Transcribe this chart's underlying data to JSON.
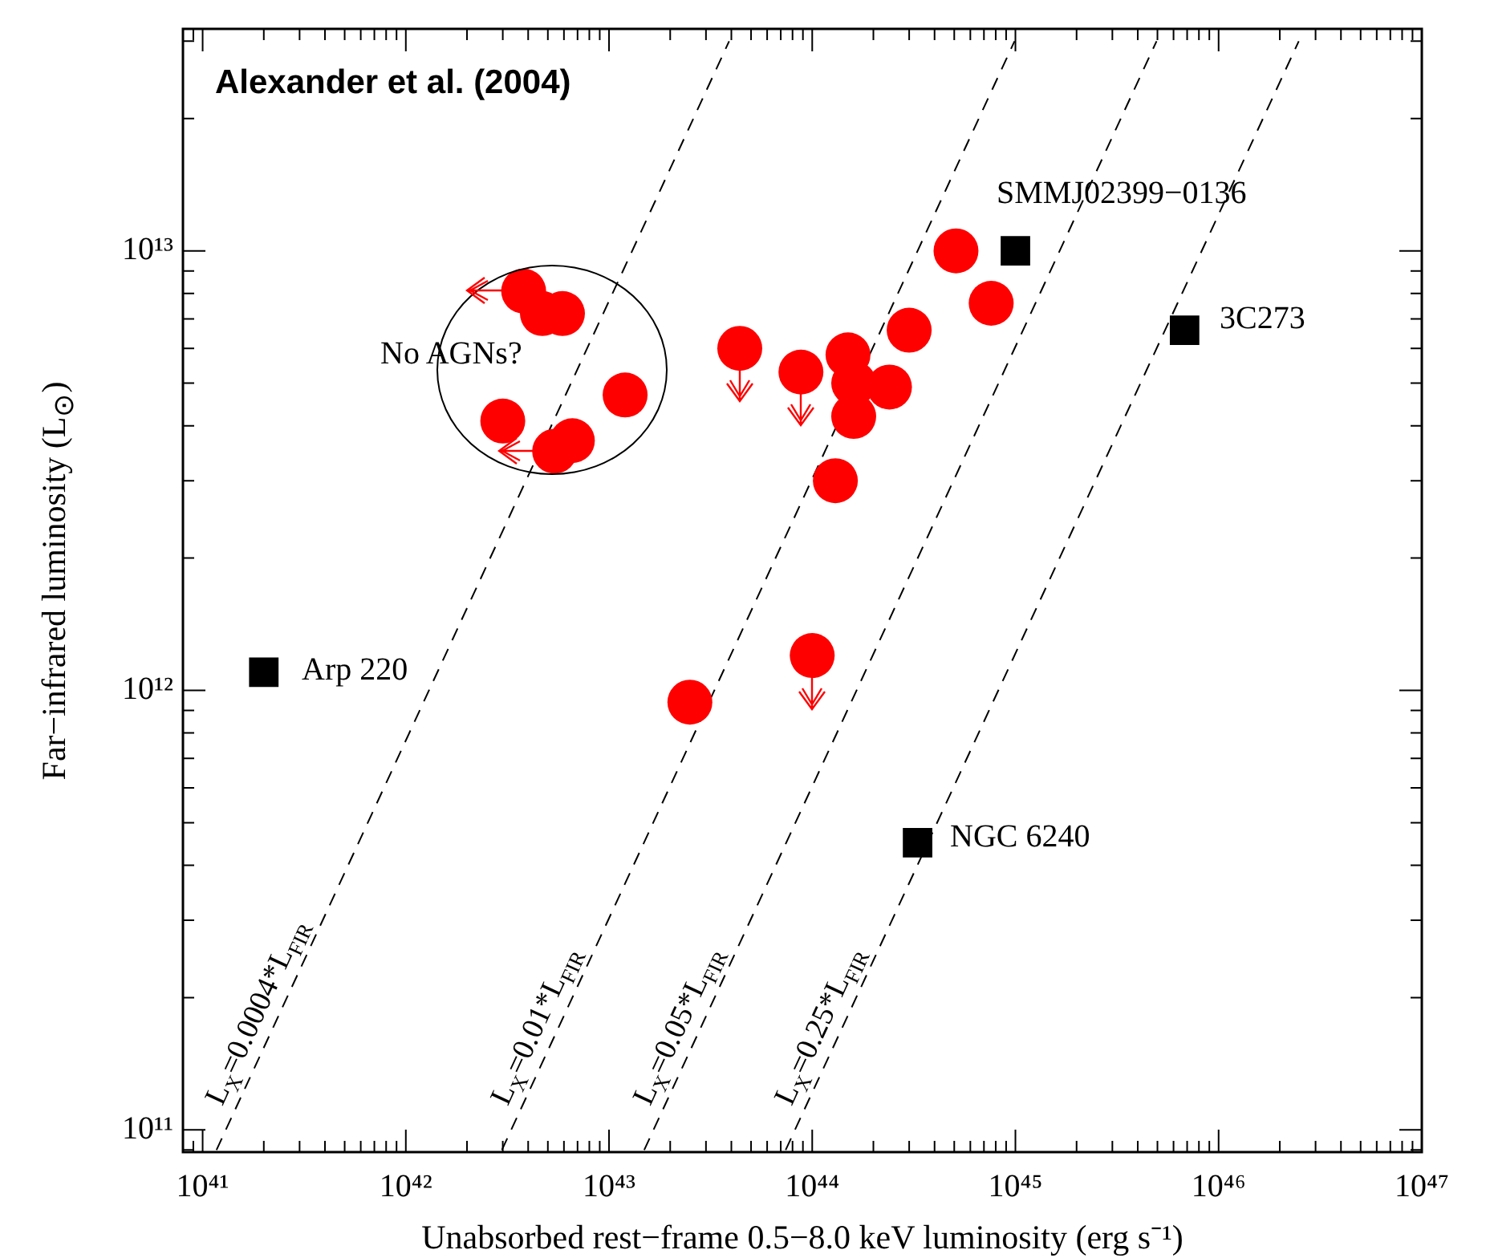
{
  "chart_data": {
    "type": "scatter",
    "title": "Alexander et al. (2004)",
    "xlabel": "Unabsorbed rest−frame 0.5−8.0 keV luminosity (erg s⁻¹)",
    "ylabel": "Far−infrared luminosity (L$_{⊙}$)",
    "log": "xy",
    "grid": false,
    "legend": false,
    "xlim": [
      8e+40,
      1e+47
    ],
    "ylim": [
      89000000000.0,
      32000000000000.0
    ],
    "xticks": [
      {
        "value": 9e+40,
        "label": null
      },
      {
        "value": 1e+41,
        "label": "10⁴¹"
      },
      {
        "value": 2e+41,
        "label": null
      },
      {
        "value": 3e+41,
        "label": null
      },
      {
        "value": 4e+41,
        "label": null
      },
      {
        "value": 5e+41,
        "label": null
      },
      {
        "value": 6e+41,
        "label": null
      },
      {
        "value": 7e+41,
        "label": null
      },
      {
        "value": 8e+41,
        "label": null
      },
      {
        "value": 9e+41,
        "label": null
      },
      {
        "value": 1e+42,
        "label": "10⁴²"
      },
      {
        "value": 2e+42,
        "label": null
      },
      {
        "value": 3e+42,
        "label": null
      },
      {
        "value": 4e+42,
        "label": null
      },
      {
        "value": 5e+42,
        "label": null
      },
      {
        "value": 6e+42,
        "label": null
      },
      {
        "value": 7e+42,
        "label": null
      },
      {
        "value": 8e+42,
        "label": null
      },
      {
        "value": 9e+42,
        "label": null
      },
      {
        "value": 1e+43,
        "label": "10⁴³"
      },
      {
        "value": 2e+43,
        "label": null
      },
      {
        "value": 3e+43,
        "label": null
      },
      {
        "value": 4e+43,
        "label": null
      },
      {
        "value": 5e+43,
        "label": null
      },
      {
        "value": 6e+43,
        "label": null
      },
      {
        "value": 7e+43,
        "label": null
      },
      {
        "value": 8e+43,
        "label": null
      },
      {
        "value": 9e+43,
        "label": null
      },
      {
        "value": 1e+44,
        "label": "10⁴⁴"
      },
      {
        "value": 2e+44,
        "label": null
      },
      {
        "value": 3e+44,
        "label": null
      },
      {
        "value": 4e+44,
        "label": null
      },
      {
        "value": 5e+44,
        "label": null
      },
      {
        "value": 6e+44,
        "label": null
      },
      {
        "value": 7e+44,
        "label": null
      },
      {
        "value": 8e+44,
        "label": null
      },
      {
        "value": 9e+44,
        "label": null
      },
      {
        "value": 1e+45,
        "label": "10⁴⁵"
      },
      {
        "value": 2e+45,
        "label": null
      },
      {
        "value": 3e+45,
        "label": null
      },
      {
        "value": 4e+45,
        "label": null
      },
      {
        "value": 5e+45,
        "label": null
      },
      {
        "value": 6e+45,
        "label": null
      },
      {
        "value": 7e+45,
        "label": null
      },
      {
        "value": 8e+45,
        "label": null
      },
      {
        "value": 9e+45,
        "label": null
      },
      {
        "value": 1e+46,
        "label": "10⁴⁶"
      },
      {
        "value": 2e+46,
        "label": null
      },
      {
        "value": 3e+46,
        "label": null
      },
      {
        "value": 4e+46,
        "label": null
      },
      {
        "value": 5e+46,
        "label": null
      },
      {
        "value": 6e+46,
        "label": null
      },
      {
        "value": 7e+46,
        "label": null
      },
      {
        "value": 8e+46,
        "label": null
      },
      {
        "value": 9e+46,
        "label": null
      },
      {
        "value": 1e+47,
        "label": "10⁴⁷"
      }
    ],
    "yticks": [
      {
        "value": 90000000000.0,
        "label": null
      },
      {
        "value": 100000000000.0,
        "label": "10¹¹"
      },
      {
        "value": 200000000000.0,
        "label": null
      },
      {
        "value": 300000000000.0,
        "label": null
      },
      {
        "value": 400000000000.0,
        "label": null
      },
      {
        "value": 500000000000.0,
        "label": null
      },
      {
        "value": 600000000000.0,
        "label": null
      },
      {
        "value": 700000000000.0,
        "label": null
      },
      {
        "value": 800000000000.0,
        "label": null
      },
      {
        "value": 900000000000.0,
        "label": null
      },
      {
        "value": 1000000000000.0,
        "label": "10¹²"
      },
      {
        "value": 2000000000000.0,
        "label": null
      },
      {
        "value": 3000000000000.0,
        "label": null
      },
      {
        "value": 4000000000000.0,
        "label": null
      },
      {
        "value": 5000000000000.0,
        "label": null
      },
      {
        "value": 6000000000000.0,
        "label": null
      },
      {
        "value": 7000000000000.0,
        "label": null
      },
      {
        "value": 8000000000000.0,
        "label": null
      },
      {
        "value": 9000000000000.0,
        "label": null
      },
      {
        "value": 10000000000000.0,
        "label": "10¹³"
      },
      {
        "value": 20000000000000.0,
        "label": null
      },
      {
        "value": 30000000000000.0,
        "label": null
      }
    ],
    "series": [
      {
        "type": "scatter",
        "color": "#ff0000",
        "marker": "circle",
        "x": [
          3.8e+42,
          4.7e+42,
          5.9e+42,
          1.2e+43,
          3e+42,
          5.4e+42,
          6.6e+42,
          4.4e+43,
          8.8e+43,
          1.5e+44,
          1.6e+44,
          2.4e+44,
          1.6e+44,
          1.3e+44,
          3e+44,
          5.1e+44,
          7.6e+44,
          2.5e+43,
          1e+44
        ],
        "values": [
          8100000000000.0,
          7200000000000.0,
          7200000000000.0,
          4700000000000.0,
          4100000000000.0,
          3500000000000.0,
          3700000000000.0,
          6000000000000.0,
          5300000000000.0,
          5800000000000.0,
          5000000000000.0,
          4900000000000.0,
          4200000000000.0,
          3000000000000.0,
          6600000000000.0,
          10000000000000.0,
          7600000000000.0,
          940000000000.0,
          1200000000000.0
        ]
      },
      {
        "type": "scatter",
        "color": "#000000",
        "marker": "square",
        "x": [
          1e+45,
          6.8e+45,
          2e+41,
          3.3e+44
        ],
        "values": [
          10000000000000.0,
          6600000000000.0,
          1100000000000.0,
          450000000000.0
        ]
      },
      {
        "type": "line",
        "name": "L$_{X}$=0.0004*L$_{FIR}$",
        "color": "#000000",
        "marker": "none",
        "line_style": "dashed",
        "x": [
          1.17e+41,
          3.9e+43
        ],
        "values": [
          90000000000.0,
          30000000000000.0
        ]
      },
      {
        "type": "line",
        "name": "L$_{X}$=0.01*L$_{FIR}$",
        "color": "#000000",
        "marker": "none",
        "line_style": "dashed",
        "x": [
          2.97e+42,
          9.9e+44
        ],
        "values": [
          90000000000.0,
          30000000000000.0
        ]
      },
      {
        "type": "line",
        "name": "L$_{X}$=0.05*L$_{FIR}$",
        "color": "#000000",
        "marker": "none",
        "line_style": "dashed",
        "x": [
          1.49e+43,
          4.95e+45
        ],
        "values": [
          90000000000.0,
          30000000000000.0
        ]
      },
      {
        "type": "line",
        "name": "L$_{X}$=0.25*L$_{FIR}$",
        "color": "#000000",
        "marker": "none",
        "line_style": "dashed",
        "x": [
          7.4e+43,
          2.48e+46
        ],
        "values": [
          90000000000.0,
          30000000000000.0
        ]
      }
    ],
    "annotations": [
      "No AGNs?",
      "SMMJ02399−0136",
      "3C273",
      "Arp 220",
      "NGC 6240"
    ]
  }
}
